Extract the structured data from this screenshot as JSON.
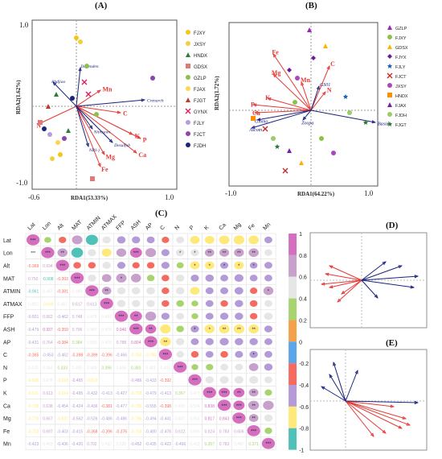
{
  "panels": {
    "A": {
      "label": "(A)",
      "xlabel": "RDA1(53.33%)",
      "ylabel": "RDA2(1.62%)",
      "ticks": {
        "xmin": "-0.6",
        "xmax": "1.0",
        "ymin": "-1.0",
        "ymax": "1.0"
      },
      "legend": [
        {
          "label": "FJXY",
          "color": "#f5c518",
          "shape": "circle"
        },
        {
          "label": "JXSY",
          "color": "#f0d040",
          "shape": "circle"
        },
        {
          "label": "HNDX",
          "color": "#2e7d32",
          "shape": "triangle"
        },
        {
          "label": "GDSX",
          "color": "#e07a7a",
          "shape": "square"
        },
        {
          "label": "GZLP",
          "color": "#8bc34a",
          "shape": "circle"
        },
        {
          "label": "FJAX",
          "color": "#ffd54f",
          "shape": "circle"
        },
        {
          "label": "FJGT",
          "color": "#c0392b",
          "shape": "triangle"
        },
        {
          "label": "GYNX",
          "color": "#d81b60",
          "shape": "x"
        },
        {
          "label": "FJLY",
          "color": "#b39ddb",
          "shape": "circle"
        },
        {
          "label": "FJCT",
          "color": "#8e44ad",
          "shape": "circle"
        },
        {
          "label": "FJDH",
          "color": "#1a237e",
          "shape": "circle"
        }
      ],
      "env_vectors": [
        {
          "label": "Mn",
          "color": "#e53935"
        },
        {
          "label": "C",
          "color": "#e53935"
        },
        {
          "label": "K",
          "color": "#e53935"
        },
        {
          "label": "P",
          "color": "#e53935"
        },
        {
          "label": "Mg",
          "color": "#e53935"
        },
        {
          "label": "Ca",
          "color": "#e53935"
        },
        {
          "label": "Fe",
          "color": "#e53935"
        },
        {
          "label": "N",
          "color": "#e53935"
        }
      ],
      "taxa_vectors": [
        {
          "label": "Dependen"
        },
        {
          "label": "Ahdjiao"
        },
        {
          "label": "Crenarch"
        },
        {
          "label": "Nitrosom"
        },
        {
          "label": "Desulfob"
        },
        {
          "label": "NB1-j"
        }
      ]
    },
    "B": {
      "label": "(B)",
      "xlabel": "RDA1(64.22%)",
      "ylabel": "RDA2(1.72%)",
      "ticks": {
        "xmin": "-1.0",
        "xmax": "1.0"
      },
      "legend": [
        {
          "label": "GZLP",
          "color": "#9c27b0",
          "shape": "triangle"
        },
        {
          "label": "FJXY",
          "color": "#8bc34a",
          "shape": "circle"
        },
        {
          "label": "GDSX",
          "color": "#ffb300",
          "shape": "triangle"
        },
        {
          "label": "FJYX",
          "color": "#6a1b9a",
          "shape": "diamond"
        },
        {
          "label": "FJLY",
          "color": "#1565c0",
          "shape": "star"
        },
        {
          "label": "FJCT",
          "color": "#c62828",
          "shape": "x"
        },
        {
          "label": "JXSY",
          "color": "#ab47bc",
          "shape": "circle"
        },
        {
          "label": "HNDX",
          "color": "#ff8f00",
          "shape": "square"
        },
        {
          "label": "FJAX",
          "color": "#7b1fa2",
          "shape": "triangle"
        },
        {
          "label": "FJDH",
          "color": "#9ccc65",
          "shape": "circle"
        },
        {
          "label": "FJGT",
          "color": "#2e7d32",
          "shape": "star"
        }
      ],
      "env_vectors": [
        {
          "label": "Fe"
        },
        {
          "label": "Mg"
        },
        {
          "label": "Mn"
        },
        {
          "label": "K"
        },
        {
          "label": "P"
        },
        {
          "label": "Ca"
        },
        {
          "label": "C"
        },
        {
          "label": "N"
        }
      ],
      "taxa_vectors": [
        {
          "label": "GS01"
        },
        {
          "label": "Glomo"
        },
        {
          "label": "Ascom"
        },
        {
          "label": "Zoopa"
        },
        {
          "label": "Basid"
        }
      ]
    },
    "C": {
      "label": "(C)",
      "variables": [
        "Lat",
        "Lon",
        "Alt",
        "MAT",
        "ATMIN",
        "ATMAX",
        "FFP",
        "ASH",
        "AP",
        "C",
        "N",
        "P",
        "K",
        "Ca",
        "Mg",
        "Fe",
        "Mn"
      ],
      "colorbar_ticks": [
        "1",
        "0.8",
        "0.6",
        "0.4",
        "0.2",
        "0",
        "-0.2",
        "-0.4",
        "-0.6",
        "-0.8",
        "-1"
      ],
      "colorbar_colors": [
        "#d46fc0",
        "#c7a0cc",
        "#e6e6e6",
        "#a7d46f",
        "#f3a24a",
        "#5aa6e8",
        "#f56b60",
        "#b49ad6",
        "#ffe97a",
        "#4fc1b6"
      ],
      "lower_values": [
        [],
        [
          "***"
        ],
        [
          "-0.369",
          "0.694"
        ],
        [
          "0.750",
          "-0.908",
          "-0.393"
        ],
        [
          "-0.961",
          "0.487",
          "-0.381",
          "0.489"
        ],
        [
          "0.481",
          "-0.649",
          "0.467",
          "0.617",
          "0.613"
        ],
        [
          "-0.501",
          "0.662",
          "-0.462",
          "0.748",
          "0.479",
          "0.497"
        ],
        [
          "-0.479",
          "0.937",
          "-0.359",
          "0.706",
          "0.497",
          "0.476",
          "0.946"
        ],
        [
          "-0.431",
          "0.764",
          "-0.384",
          "0.384",
          "0.500",
          "0.479",
          "0.788",
          "0.804"
        ],
        [
          "-0.365",
          "-0.453",
          "-0.462",
          "-0.398",
          "-0.399",
          "-0.396",
          "-0.466",
          "-0.763",
          "-0.783"
        ],
        [
          "0.433",
          "0.494",
          "0.333",
          "0.493",
          "0.489",
          "0.396",
          "0.406",
          "0.383",
          "0.481",
          "0.403"
        ],
        [
          "-0.626",
          "0.478",
          "-0.618",
          "-0.465",
          "-0.619",
          "",
          "",
          "-0.486",
          "-0.433",
          "-0.392"
        ],
        [
          "-0.611",
          "0.613",
          "-0.614",
          "-0.495",
          "-0.432",
          "-0.413",
          "-0.427",
          "-0.703",
          "-0.479",
          "-0.413",
          "0.367",
          "0.477"
        ],
        [
          "-0.735",
          "0.638",
          "-0.454",
          "-0.424",
          "-0.436",
          "-0.381",
          "-0.477",
          "-0.755",
          "-0.555",
          "-0.398",
          "0.415",
          "0.534",
          "0.838"
        ],
        [
          "-0.775",
          "0.667",
          "-0.637",
          "-0.562",
          "-0.526",
          "-0.486",
          "-0.486",
          "-0.766",
          "-0.494",
          "-0.441",
          "0.407",
          "0.551",
          "0.817",
          "0.843"
        ],
        [
          "-0.723",
          "0.697",
          "-0.403",
          "-0.415",
          "-0.368",
          "-0.396",
          "-0.376",
          "-0.743",
          "-0.480",
          "-0.478",
          "0.612",
          "0.566",
          "0.624",
          "0.783",
          "0.606"
        ],
        [
          "-0.423",
          "0.403",
          "-0.436",
          "-0.420",
          "0.702",
          "0.433",
          "0.520",
          "-0.452",
          "-0.435",
          "-0.423",
          "-0.496",
          "0.423",
          "0.357",
          "0.783",
          "0.487",
          "0.371"
        ]
      ],
      "upper_stars": [
        [
          "***",
          "",
          "",
          "",
          "",
          "",
          "",
          "",
          "",
          "",
          "",
          "",
          "",
          "",
          "",
          "",
          ""
        ],
        [
          "",
          "***",
          "**",
          "",
          "",
          "",
          "",
          "***",
          "",
          "",
          "*",
          "*",
          "**",
          "**",
          "**",
          "**",
          ""
        ],
        [
          "",
          "",
          "***",
          "",
          "",
          "",
          "",
          "",
          "",
          "",
          "",
          "*",
          "*",
          "*",
          "*",
          "*",
          ""
        ],
        [
          "",
          "",
          "",
          "***",
          "",
          "",
          "*",
          "",
          "",
          "",
          "",
          "",
          "",
          "",
          "",
          "",
          ""
        ],
        [
          "",
          "",
          "",
          "",
          "***",
          "**",
          "",
          "",
          "",
          "",
          "",
          "",
          "",
          "",
          "",
          "",
          "*"
        ],
        [
          "",
          "",
          "",
          "",
          "",
          "***",
          "",
          "",
          "",
          "",
          "",
          "",
          "",
          "",
          "",
          "",
          ""
        ],
        [
          "",
          "",
          "",
          "",
          "",
          "",
          "***",
          "**",
          "",
          "",
          "",
          "",
          "",
          "",
          "",
          "",
          ""
        ],
        [
          "",
          "",
          "",
          "",
          "",
          "",
          "",
          "***",
          "**",
          "",
          "",
          "*",
          "*",
          "**",
          "**",
          "**",
          ""
        ],
        [
          "",
          "",
          "",
          "",
          "",
          "",
          "",
          "",
          "***",
          "**",
          "",
          "",
          "",
          "",
          "",
          "",
          ""
        ],
        [
          "",
          "",
          "",
          "",
          "",
          "",
          "",
          "",
          "",
          "***",
          "",
          "",
          "",
          "",
          "",
          "*",
          ""
        ],
        [
          "",
          "",
          "",
          "",
          "",
          "",
          "",
          "",
          "",
          "",
          "***",
          "",
          "",
          "",
          "",
          "",
          ""
        ],
        [
          "",
          "",
          "",
          "",
          "",
          "",
          "",
          "",
          "",
          "",
          "",
          "***",
          "",
          "",
          "",
          "",
          ""
        ],
        [
          "",
          "",
          "",
          "",
          "",
          "",
          "",
          "",
          "",
          "",
          "",
          "",
          "***",
          "***",
          "**",
          "**",
          ""
        ],
        [
          "",
          "",
          "",
          "",
          "",
          "",
          "",
          "",
          "",
          "",
          "",
          "",
          "",
          "***",
          "***",
          "**",
          ""
        ],
        [
          "",
          "",
          "",
          "",
          "",
          "",
          "",
          "",
          "",
          "",
          "",
          "",
          "",
          "",
          "***",
          "**",
          ""
        ],
        [
          "",
          "",
          "",
          "",
          "",
          "",
          "",
          "",
          "",
          "",
          "",
          "",
          "",
          "",
          "",
          "***",
          ""
        ],
        [
          "",
          "",
          "",
          "",
          "",
          "",
          "",
          "",
          "",
          "",
          "",
          "",
          "",
          "",
          "",
          "",
          "***"
        ]
      ]
    },
    "D": {
      "label": "(D)"
    },
    "E": {
      "label": "(E)"
    }
  }
}
